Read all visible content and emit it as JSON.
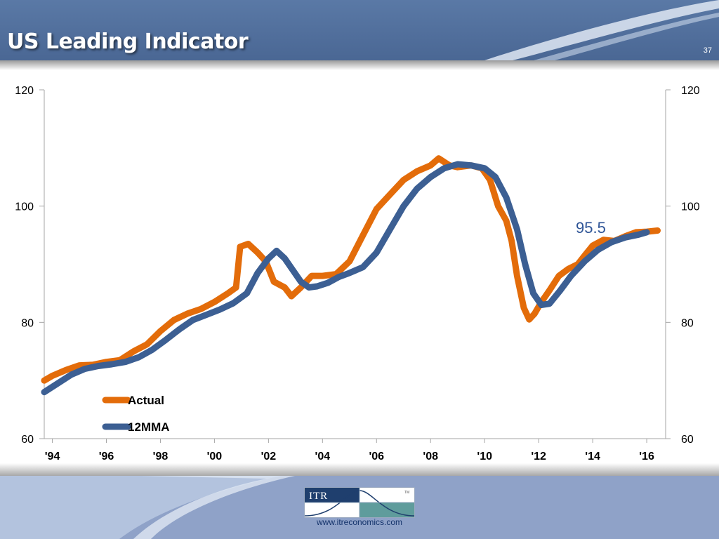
{
  "slide": {
    "title": "US Leading Indicator",
    "page_number": "37",
    "footer_url": "www.itreconomics.com",
    "logo_text": "ITR",
    "logo_tm": "TM"
  },
  "colors": {
    "header_blue": "#4f6f9c",
    "actual": "#e36c0a",
    "mma": "#3c5f93",
    "annotation": "#2f5597",
    "footer_blue": "#8fa2c8"
  },
  "chart_data": {
    "type": "line",
    "title": "",
    "xlabel": "",
    "ylabel": "",
    "x_tick_labels": [
      "'94",
      "'96",
      "'98",
      "'00",
      "'02",
      "'04",
      "'06",
      "'08",
      "'10",
      "'12",
      "'14",
      "'16"
    ],
    "x_tick_years": [
      1994,
      1996,
      1998,
      2000,
      2002,
      2004,
      2006,
      2008,
      2010,
      2012,
      2014,
      2016
    ],
    "xlim": [
      1993.7,
      2016.7
    ],
    "ylim": [
      60,
      120
    ],
    "y_ticks": [
      60,
      80,
      100,
      120
    ],
    "y_tick_labels": [
      "60",
      "80",
      "100",
      "120"
    ],
    "y_ticks_right": true,
    "grid": false,
    "legend_position": "lower-left",
    "annotation": {
      "text": "95.5",
      "year": 2012.8,
      "value": 95.5
    },
    "series": [
      {
        "name": "Actual",
        "color": "#e36c0a",
        "points": [
          [
            1993.7,
            70.0
          ],
          [
            1994.0,
            70.8
          ],
          [
            1994.5,
            71.8
          ],
          [
            1995.0,
            72.6
          ],
          [
            1995.5,
            72.7
          ],
          [
            1996.0,
            73.2
          ],
          [
            1996.5,
            73.5
          ],
          [
            1997.0,
            75.0
          ],
          [
            1997.5,
            76.2
          ],
          [
            1998.0,
            78.5
          ],
          [
            1998.5,
            80.4
          ],
          [
            1999.0,
            81.5
          ],
          [
            1999.5,
            82.3
          ],
          [
            2000.0,
            83.5
          ],
          [
            2000.5,
            85.0
          ],
          [
            2000.8,
            86.0
          ],
          [
            2000.95,
            93.0
          ],
          [
            2001.25,
            93.5
          ],
          [
            2001.6,
            92.0
          ],
          [
            2001.9,
            90.5
          ],
          [
            2002.2,
            87.0
          ],
          [
            2002.6,
            86.0
          ],
          [
            2002.85,
            84.5
          ],
          [
            2003.2,
            86.0
          ],
          [
            2003.6,
            88.0
          ],
          [
            2004.0,
            88.0
          ],
          [
            2004.5,
            88.3
          ],
          [
            2005.0,
            90.5
          ],
          [
            2005.5,
            95.0
          ],
          [
            2006.0,
            99.5
          ],
          [
            2006.5,
            102.0
          ],
          [
            2007.0,
            104.5
          ],
          [
            2007.5,
            106.0
          ],
          [
            2008.0,
            107.0
          ],
          [
            2008.3,
            108.2
          ],
          [
            2008.7,
            107.0
          ],
          [
            2009.0,
            106.7
          ],
          [
            2009.5,
            107.0
          ],
          [
            2009.9,
            106.5
          ],
          [
            2010.2,
            104.5
          ],
          [
            2010.5,
            100.0
          ],
          [
            2010.8,
            97.5
          ],
          [
            2011.0,
            94.0
          ],
          [
            2011.2,
            88.0
          ],
          [
            2011.45,
            82.5
          ],
          [
            2011.65,
            80.5
          ],
          [
            2011.85,
            81.5
          ],
          [
            2012.1,
            83.5
          ],
          [
            2012.4,
            85.5
          ],
          [
            2012.75,
            88.0
          ],
          [
            2013.1,
            89.2
          ],
          [
            2013.45,
            90.0
          ],
          [
            2013.7,
            91.5
          ],
          [
            2014.0,
            93.2
          ],
          [
            2014.4,
            94.2
          ],
          [
            2014.8,
            94.0
          ],
          [
            2015.2,
            94.8
          ],
          [
            2015.6,
            95.5
          ],
          [
            2016.0,
            95.6
          ],
          [
            2016.4,
            95.8
          ]
        ]
      },
      {
        "name": "12MMA",
        "color": "#3c5f93",
        "points": [
          [
            1993.7,
            68.0
          ],
          [
            1994.2,
            69.5
          ],
          [
            1994.7,
            71.0
          ],
          [
            1995.2,
            72.0
          ],
          [
            1995.7,
            72.5
          ],
          [
            1996.2,
            72.8
          ],
          [
            1996.7,
            73.2
          ],
          [
            1997.2,
            74.0
          ],
          [
            1997.7,
            75.3
          ],
          [
            1998.2,
            77.0
          ],
          [
            1998.7,
            78.8
          ],
          [
            1999.2,
            80.4
          ],
          [
            1999.7,
            81.3
          ],
          [
            2000.2,
            82.2
          ],
          [
            2000.7,
            83.3
          ],
          [
            2001.2,
            85.0
          ],
          [
            2001.6,
            88.5
          ],
          [
            2002.0,
            91.0
          ],
          [
            2002.3,
            92.3
          ],
          [
            2002.6,
            91.0
          ],
          [
            2002.9,
            89.0
          ],
          [
            2003.2,
            87.0
          ],
          [
            2003.5,
            86.0
          ],
          [
            2003.8,
            86.2
          ],
          [
            2004.2,
            86.8
          ],
          [
            2004.6,
            87.8
          ],
          [
            2005.0,
            88.5
          ],
          [
            2005.5,
            89.5
          ],
          [
            2006.0,
            92.0
          ],
          [
            2006.5,
            96.0
          ],
          [
            2007.0,
            100.0
          ],
          [
            2007.5,
            103.0
          ],
          [
            2008.0,
            105.0
          ],
          [
            2008.5,
            106.5
          ],
          [
            2009.0,
            107.2
          ],
          [
            2009.5,
            107.0
          ],
          [
            2010.0,
            106.5
          ],
          [
            2010.4,
            105.0
          ],
          [
            2010.8,
            101.5
          ],
          [
            2011.2,
            96.0
          ],
          [
            2011.5,
            90.0
          ],
          [
            2011.8,
            85.0
          ],
          [
            2012.1,
            83.0
          ],
          [
            2012.4,
            83.2
          ],
          [
            2012.8,
            85.5
          ],
          [
            2013.2,
            88.0
          ],
          [
            2013.7,
            90.5
          ],
          [
            2014.2,
            92.5
          ],
          [
            2014.7,
            93.8
          ],
          [
            2015.2,
            94.6
          ],
          [
            2015.7,
            95.1
          ],
          [
            2016.0,
            95.5
          ]
        ]
      }
    ]
  }
}
